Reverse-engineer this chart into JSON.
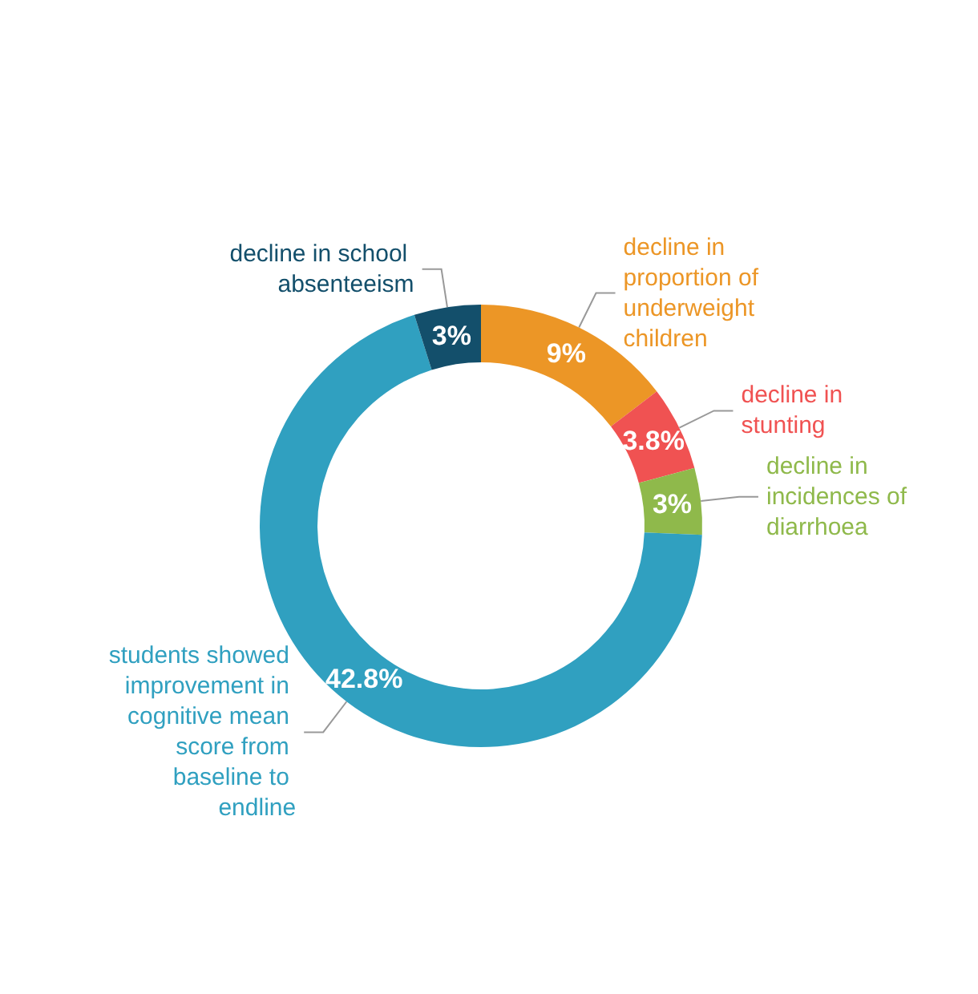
{
  "chart_data": {
    "type": "donut",
    "categories": [
      "decline in proportion of underweight children",
      "decline in stunting",
      "decline in incidences of diarrhoea",
      "students showed improvement in cognitive mean score from baseline to endline",
      "decline in school absenteeism"
    ],
    "values": [
      9,
      3.8,
      3,
      42.8,
      3
    ],
    "colors": [
      "#ec9626",
      "#f05252",
      "#8fb94b",
      "#30a0c0",
      "#134f6b"
    ],
    "value_labels": [
      "9%",
      "3.8%",
      "3%",
      "42.8%",
      "3%"
    ],
    "legend": false
  }
}
